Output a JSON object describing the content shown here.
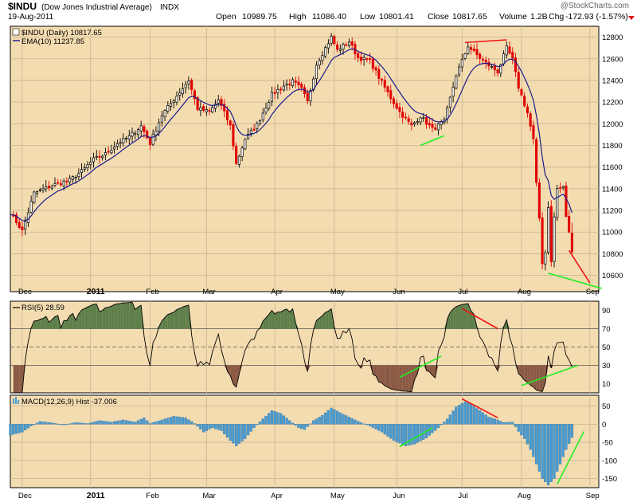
{
  "header": {
    "symbol": "$INDU",
    "name": "(Dow Jones Industrial Average)",
    "exchange": "INDX",
    "date": "19-Aug-2011",
    "quote": {
      "open_label": "Open",
      "open": "10989.75",
      "high_label": "High",
      "high": "11086.40",
      "low_label": "Low",
      "low": "10801.41",
      "close_label": "Close",
      "close": "10817.65",
      "volume_label": "Volume",
      "volume": "1.2B",
      "chg_label": "Chg",
      "chg": "-172.93 (-1.57%)"
    },
    "watermark": "@StockCharts.com"
  },
  "colors": {
    "background": "#f4dcb1",
    "frame": "#000000",
    "grid": "#c9b48f",
    "up": "#000000",
    "down": "#e00000",
    "ema": "#1a1a8c",
    "rsi_line": "#000000",
    "rsi_overbought_fill": "#5e7f4a",
    "rsi_oversold_fill": "#8b5a45",
    "macd_hist": "#4a9bd1",
    "annotation_green": "#22ee22",
    "annotation_red": "#ee1111"
  },
  "chart_data": [
    {
      "type": "candlestick",
      "title": "$INDU (Daily) 10817.65",
      "legend": [
        {
          "label": "$INDU (Daily) 10817.65"
        },
        {
          "label": "EMA(10) 11237.85"
        }
      ],
      "ylim": [
        10450,
        12900
      ],
      "yticks": [
        10600,
        10800,
        11000,
        11200,
        11400,
        11600,
        11800,
        12000,
        12200,
        12400,
        12600,
        12800
      ],
      "grid": true,
      "axis_position": "right",
      "x_months": [
        {
          "label": "Dec",
          "day": 0
        },
        {
          "label": "2011",
          "day": 23,
          "bold": true
        },
        {
          "label": "Feb",
          "day": 43
        },
        {
          "label": "Mar",
          "day": 62
        },
        {
          "label": "Apr",
          "day": 85
        },
        {
          "label": "May",
          "day": 105
        },
        {
          "label": "Jun",
          "day": 126
        },
        {
          "label": "Jul",
          "day": 148
        },
        {
          "label": "Aug",
          "day": 168
        },
        {
          "label": "Sep",
          "day": 191
        }
      ],
      "close_anchors": [
        [
          -4,
          11180
        ],
        [
          0,
          11010
        ],
        [
          4,
          11360
        ],
        [
          10,
          11430
        ],
        [
          16,
          11480
        ],
        [
          20,
          11560
        ],
        [
          24,
          11670
        ],
        [
          28,
          11720
        ],
        [
          32,
          11820
        ],
        [
          36,
          11880
        ],
        [
          40,
          11980
        ],
        [
          43,
          11820
        ],
        [
          47,
          12080
        ],
        [
          52,
          12260
        ],
        [
          56,
          12400
        ],
        [
          59,
          12140
        ],
        [
          63,
          12110
        ],
        [
          66,
          12220
        ],
        [
          70,
          11980
        ],
        [
          72,
          11630
        ],
        [
          75,
          11860
        ],
        [
          79,
          11990
        ],
        [
          84,
          12270
        ],
        [
          88,
          12350
        ],
        [
          91,
          12390
        ],
        [
          94,
          12320
        ],
        [
          96,
          12200
        ],
        [
          99,
          12550
        ],
        [
          104,
          12800
        ],
        [
          106,
          12680
        ],
        [
          110,
          12760
        ],
        [
          113,
          12610
        ],
        [
          117,
          12580
        ],
        [
          120,
          12430
        ],
        [
          124,
          12240
        ],
        [
          127,
          12110
        ],
        [
          131,
          11980
        ],
        [
          134,
          12070
        ],
        [
          138,
          11950
        ],
        [
          142,
          12020
        ],
        [
          146,
          12450
        ],
        [
          148,
          12580
        ],
        [
          150,
          12720
        ],
        [
          152,
          12660
        ],
        [
          156,
          12560
        ],
        [
          160,
          12480
        ],
        [
          163,
          12700
        ],
        [
          165,
          12590
        ],
        [
          167,
          12340
        ],
        [
          170,
          12100
        ],
        [
          172,
          11850
        ],
        [
          173,
          11440
        ],
        [
          174,
          11130
        ],
        [
          175,
          10720
        ],
        [
          176,
          10810
        ],
        [
          177,
          11240
        ],
        [
          178,
          10720
        ],
        [
          179,
          11140
        ],
        [
          180,
          11400
        ],
        [
          182,
          11410
        ],
        [
          183,
          11150
        ],
        [
          184,
          10990
        ],
        [
          185,
          10818
        ]
      ],
      "ema": {
        "name": "EMA(10)",
        "last": 11237.85
      },
      "annotations": [
        {
          "color": "green",
          "from": [
            134,
            11800
          ],
          "to": [
            142,
            11890
          ]
        },
        {
          "color": "red",
          "from": [
            149,
            12750
          ],
          "to": [
            163,
            12775
          ]
        },
        {
          "color": "green",
          "from": [
            177,
            10620
          ],
          "to": [
            195,
            10480
          ]
        },
        {
          "color": "red",
          "from": [
            184,
            10830
          ],
          "to": [
            191,
            10530
          ]
        }
      ]
    },
    {
      "type": "line",
      "title": "RSI(5) 28.59",
      "legend": [
        {
          "label": "RSI(5) 28.59"
        }
      ],
      "ylim": [
        0,
        100
      ],
      "yticks": [
        10,
        30,
        50,
        70,
        90
      ],
      "overbought": 70,
      "oversold": 30,
      "centerline": 50,
      "annotations": [
        {
          "color": "green",
          "from": [
            127,
            17
          ],
          "to": [
            141,
            40
          ]
        },
        {
          "color": "red",
          "from": [
            148,
            92
          ],
          "to": [
            160,
            70
          ]
        },
        {
          "color": "green",
          "from": [
            168,
            8
          ],
          "to": [
            187,
            30
          ]
        }
      ]
    },
    {
      "type": "bar",
      "title": "MACD(12,26,9) Hist -37.006",
      "legend": [
        {
          "label": "MACD(12,26,9) Hist -37.006"
        }
      ],
      "ylim": [
        -175,
        80
      ],
      "yticks": [
        -150,
        -100,
        -50,
        0,
        50
      ],
      "hist_anchors": [
        [
          -4,
          -30
        ],
        [
          0,
          -22
        ],
        [
          3,
          -5
        ],
        [
          6,
          8
        ],
        [
          10,
          4
        ],
        [
          14,
          -2
        ],
        [
          18,
          5
        ],
        [
          22,
          2
        ],
        [
          26,
          10
        ],
        [
          30,
          6
        ],
        [
          34,
          12
        ],
        [
          38,
          6
        ],
        [
          41,
          18
        ],
        [
          43,
          2
        ],
        [
          47,
          12
        ],
        [
          51,
          22
        ],
        [
          55,
          18
        ],
        [
          58,
          2
        ],
        [
          61,
          -22
        ],
        [
          64,
          -10
        ],
        [
          67,
          -18
        ],
        [
          70,
          -45
        ],
        [
          72,
          -60
        ],
        [
          75,
          -40
        ],
        [
          78,
          -10
        ],
        [
          81,
          15
        ],
        [
          84,
          38
        ],
        [
          87,
          30
        ],
        [
          90,
          10
        ],
        [
          93,
          -10
        ],
        [
          95,
          -15
        ],
        [
          98,
          10
        ],
        [
          101,
          25
        ],
        [
          104,
          45
        ],
        [
          107,
          32
        ],
        [
          110,
          20
        ],
        [
          113,
          8
        ],
        [
          117,
          -5
        ],
        [
          121,
          -22
        ],
        [
          125,
          -45
        ],
        [
          129,
          -60
        ],
        [
          132,
          -55
        ],
        [
          136,
          -38
        ],
        [
          140,
          -10
        ],
        [
          143,
          15
        ],
        [
          146,
          48
        ],
        [
          149,
          62
        ],
        [
          151,
          55
        ],
        [
          154,
          38
        ],
        [
          157,
          20
        ],
        [
          160,
          12
        ],
        [
          162,
          5
        ],
        [
          165,
          6
        ],
        [
          167,
          -20
        ],
        [
          169,
          -40
        ],
        [
          171,
          -70
        ],
        [
          173,
          -110
        ],
        [
          175,
          -150
        ],
        [
          177,
          -168
        ],
        [
          179,
          -150
        ],
        [
          181,
          -110
        ],
        [
          183,
          -70
        ],
        [
          185,
          -37
        ]
      ],
      "annotations": [
        {
          "color": "green",
          "from": [
            127,
            -62
          ],
          "to": [
            138,
            -10
          ]
        },
        {
          "color": "red",
          "from": [
            148,
            70
          ],
          "to": [
            160,
            18
          ]
        },
        {
          "color": "green",
          "from": [
            180,
            -165
          ],
          "to": [
            189,
            -20
          ]
        }
      ]
    }
  ]
}
